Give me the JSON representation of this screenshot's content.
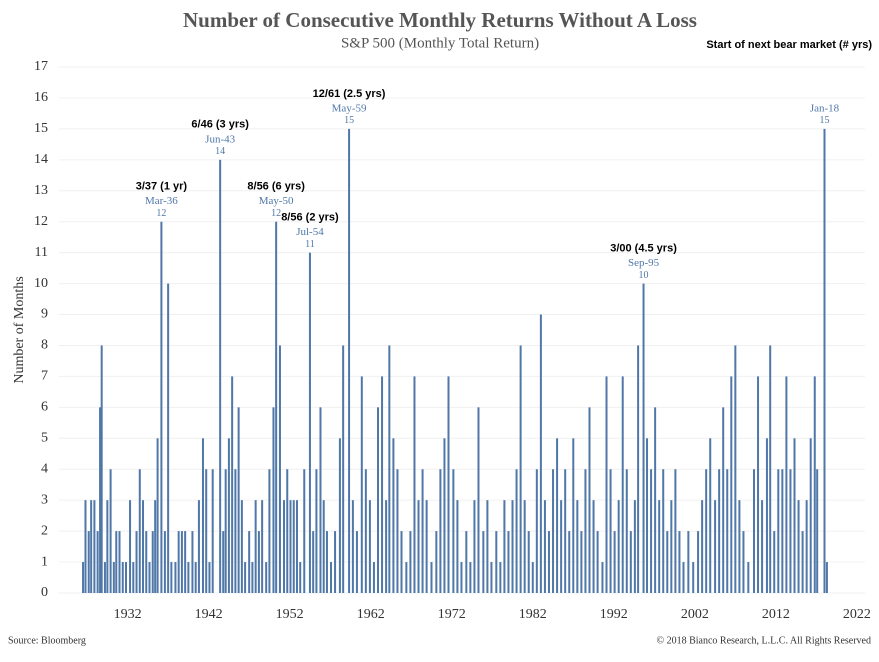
{
  "chart_data": {
    "type": "bar",
    "title": "Number of Consecutive Monthly Returns Without A Loss",
    "subtitle": "S&P 500 (Monthly Total Return)",
    "legend_note": "Start of next bear market (# yrs)",
    "y_label": "Number of Months",
    "source": "Source: Bloomberg",
    "copyright": "© 2018 Bianco Research, L.L.C. All Rights Reserved",
    "color": "#4f77a8",
    "grid": true,
    "xlim": [
      1926,
      2023
    ],
    "ylim": [
      0,
      17
    ],
    "xticks": [
      1932,
      1942,
      1952,
      1962,
      1972,
      1982,
      1992,
      2002,
      2012,
      2022
    ],
    "yticks": [
      0,
      1,
      2,
      3,
      4,
      5,
      6,
      7,
      8,
      9,
      10,
      11,
      12,
      13,
      14,
      15,
      16,
      17
    ],
    "x": [
      1926.5,
      1926.8,
      1927.2,
      1927.5,
      1927.9,
      1928.3,
      1928.6,
      1928.8,
      1929.2,
      1929.5,
      1929.9,
      1930.3,
      1930.6,
      1931.0,
      1931.4,
      1931.8,
      1932.3,
      1932.7,
      1933.1,
      1933.5,
      1933.9,
      1934.3,
      1934.7,
      1935.1,
      1935.4,
      1935.7,
      1936.17,
      1936.6,
      1937.0,
      1937.4,
      1937.9,
      1938.3,
      1938.7,
      1939.1,
      1939.5,
      1940.0,
      1940.4,
      1940.8,
      1941.3,
      1941.7,
      1942.1,
      1942.5,
      1943.42,
      1943.8,
      1944.1,
      1944.5,
      1944.9,
      1945.3,
      1945.7,
      1946.1,
      1946.5,
      1947.0,
      1947.4,
      1947.8,
      1948.2,
      1948.6,
      1949.1,
      1949.5,
      1950.0,
      1950.33,
      1950.8,
      1951.3,
      1951.7,
      1952.1,
      1952.5,
      1952.9,
      1953.3,
      1953.8,
      1954.5,
      1954.9,
      1955.3,
      1955.8,
      1956.2,
      1956.6,
      1957.1,
      1957.6,
      1958.2,
      1958.6,
      1959.33,
      1959.8,
      1960.3,
      1960.9,
      1961.4,
      1961.9,
      1962.4,
      1962.9,
      1963.4,
      1963.9,
      1964.3,
      1964.8,
      1965.3,
      1965.8,
      1966.4,
      1966.9,
      1967.4,
      1967.9,
      1968.4,
      1968.9,
      1969.5,
      1970.1,
      1970.6,
      1971.1,
      1971.6,
      1972.2,
      1972.7,
      1973.2,
      1973.8,
      1974.3,
      1974.8,
      1975.3,
      1975.9,
      1976.4,
      1976.9,
      1977.5,
      1978.0,
      1978.5,
      1979.0,
      1979.5,
      1980.0,
      1980.5,
      1981.0,
      1981.5,
      1982.0,
      1982.5,
      1983.0,
      1983.5,
      1984.0,
      1984.5,
      1985.0,
      1985.5,
      1986.0,
      1986.5,
      1987.0,
      1987.5,
      1988.0,
      1988.5,
      1989.0,
      1989.5,
      1990.0,
      1990.6,
      1991.1,
      1991.6,
      1992.1,
      1992.6,
      1993.1,
      1993.6,
      1994.1,
      1994.6,
      1995.0,
      1995.67,
      1996.1,
      1996.6,
      1997.1,
      1997.6,
      1998.1,
      1998.6,
      1999.1,
      1999.6,
      2000.1,
      2000.6,
      2001.2,
      2001.8,
      2002.4,
      2002.9,
      2003.4,
      2003.9,
      2004.5,
      2005.0,
      2005.5,
      2006.0,
      2006.5,
      2007.0,
      2007.5,
      2008.0,
      2008.6,
      2009.3,
      2009.8,
      2010.3,
      2010.9,
      2011.3,
      2011.8,
      2012.3,
      2012.8,
      2013.3,
      2013.8,
      2014.3,
      2014.8,
      2015.3,
      2015.8,
      2016.3,
      2016.8,
      2017.1,
      2018.0,
      2018.3
    ],
    "values": [
      1,
      3,
      2,
      3,
      3,
      2,
      6,
      8,
      1,
      3,
      4,
      1,
      2,
      2,
      1,
      1,
      3,
      1,
      2,
      4,
      3,
      2,
      1,
      2,
      3,
      5,
      12,
      2,
      10,
      1,
      1,
      2,
      2,
      2,
      1,
      2,
      1,
      3,
      5,
      4,
      1,
      4,
      14,
      2,
      4,
      5,
      7,
      4,
      6,
      3,
      1,
      2,
      1,
      3,
      2,
      3,
      1,
      4,
      6,
      12,
      8,
      3,
      4,
      3,
      3,
      3,
      1,
      4,
      11,
      2,
      4,
      6,
      3,
      2,
      1,
      2,
      5,
      8,
      15,
      3,
      2,
      7,
      4,
      3,
      1,
      6,
      7,
      3,
      8,
      5,
      4,
      2,
      1,
      2,
      7,
      3,
      4,
      3,
      1,
      2,
      4,
      5,
      7,
      4,
      3,
      1,
      2,
      1,
      3,
      6,
      2,
      3,
      1,
      2,
      1,
      3,
      2,
      3,
      4,
      8,
      3,
      2,
      1,
      4,
      9,
      3,
      2,
      4,
      5,
      3,
      4,
      2,
      5,
      3,
      2,
      4,
      6,
      3,
      2,
      1,
      7,
      4,
      2,
      3,
      7,
      4,
      2,
      3,
      8,
      10,
      5,
      4,
      6,
      3,
      4,
      2,
      3,
      4,
      2,
      1,
      2,
      1,
      2,
      3,
      4,
      5,
      3,
      4,
      6,
      4,
      7,
      8,
      3,
      2,
      1,
      4,
      7,
      3,
      5,
      8,
      2,
      4,
      4,
      7,
      4,
      5,
      3,
      2,
      3,
      5,
      7,
      4,
      15,
      1
    ],
    "annotations": [
      {
        "x": 1936.17,
        "bear": "3/37 (1 yr)",
        "date": "Mar-36",
        "value": 12
      },
      {
        "x": 1943.42,
        "bear": "6/46 (3 yrs)",
        "date": "Jun-43",
        "value": 14
      },
      {
        "x": 1950.33,
        "bear": "8/56 (6 yrs)",
        "date": "May-50",
        "value": 12
      },
      {
        "x": 1954.5,
        "bear": "8/56 (2 yrs)",
        "date": "Jul-54",
        "value": 11
      },
      {
        "x": 1959.33,
        "bear": "12/61 (2.5 yrs)",
        "date": "May-59",
        "value": 15
      },
      {
        "x": 1995.67,
        "bear": "3/00 (4.5 yrs)",
        "date": "Sep-95",
        "value": 10
      },
      {
        "x": 2018.0,
        "date": "Jan-18",
        "value": 15
      }
    ]
  }
}
